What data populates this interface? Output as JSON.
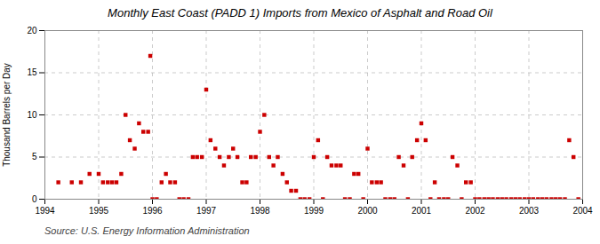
{
  "chart_data": {
    "type": "scatter",
    "title": "Monthly East Coast (PADD 1) Imports from Mexico of Asphalt and Road Oil",
    "ylabel": "Thousand Barrels per Day",
    "source": "Source: U.S. Energy Information Administration",
    "color": "#cc0000",
    "marker": "square",
    "grid": true,
    "xlim": [
      1994.0,
      2004.0
    ],
    "ylim": [
      0,
      20
    ],
    "xticks": [
      1994,
      1995,
      1996,
      1997,
      1998,
      1999,
      2000,
      2001,
      2002,
      2003,
      2004
    ],
    "yticks": [
      0,
      5,
      10,
      15,
      20
    ],
    "x": [
      1994.25,
      1994.5,
      1994.67,
      1994.83,
      1995.0,
      1995.08,
      1995.17,
      1995.25,
      1995.33,
      1995.42,
      1995.5,
      1995.58,
      1995.67,
      1995.75,
      1995.83,
      1995.92,
      1995.96,
      1996.0,
      1996.08,
      1996.17,
      1996.25,
      1996.33,
      1996.42,
      1996.5,
      1996.58,
      1996.67,
      1996.75,
      1996.83,
      1996.92,
      1997.0,
      1997.08,
      1997.17,
      1997.25,
      1997.33,
      1997.42,
      1997.5,
      1997.58,
      1997.67,
      1997.75,
      1997.83,
      1997.92,
      1998.0,
      1998.08,
      1998.17,
      1998.25,
      1998.33,
      1998.42,
      1998.5,
      1998.58,
      1998.67,
      1998.75,
      1998.83,
      1998.92,
      1999.0,
      1999.08,
      1999.17,
      1999.25,
      1999.33,
      1999.42,
      1999.5,
      1999.58,
      1999.67,
      1999.75,
      1999.83,
      1999.92,
      2000.0,
      2000.08,
      2000.17,
      2000.25,
      2000.33,
      2000.42,
      2000.5,
      2000.58,
      2000.67,
      2000.75,
      2000.83,
      2000.92,
      2001.0,
      2001.08,
      2001.17,
      2001.25,
      2001.33,
      2001.42,
      2001.5,
      2001.58,
      2001.67,
      2001.75,
      2001.83,
      2001.92,
      2002.0,
      2002.08,
      2002.17,
      2002.25,
      2002.33,
      2002.42,
      2002.5,
      2002.58,
      2002.67,
      2002.75,
      2002.83,
      2002.92,
      2003.0,
      2003.08,
      2003.17,
      2003.25,
      2003.33,
      2003.42,
      2003.5,
      2003.58,
      2003.67,
      2003.75,
      2003.83,
      2003.92
    ],
    "values": [
      2,
      2,
      2,
      3,
      3,
      2,
      2,
      2,
      2,
      3,
      10,
      7,
      6,
      9,
      8,
      8,
      17,
      0,
      0,
      2,
      3,
      2,
      2,
      0,
      0,
      0,
      5,
      5,
      5,
      13,
      7,
      6,
      5,
      4,
      5,
      6,
      5,
      2,
      2,
      5,
      5,
      8,
      10,
      5,
      4,
      5,
      3,
      2,
      1,
      1,
      0,
      0,
      0,
      5,
      7,
      0,
      5,
      4,
      4,
      4,
      0,
      0,
      3,
      3,
      0,
      6,
      2,
      2,
      2,
      0,
      0,
      0,
      5,
      4,
      0,
      5,
      7,
      9,
      7,
      0,
      2,
      0,
      0,
      0,
      5,
      4,
      0,
      2,
      2,
      0,
      0,
      0,
      0,
      0,
      0,
      0,
      0,
      0,
      0,
      0,
      0,
      0,
      0,
      0,
      0,
      0,
      0,
      0,
      0,
      0,
      7,
      5,
      0
    ]
  }
}
